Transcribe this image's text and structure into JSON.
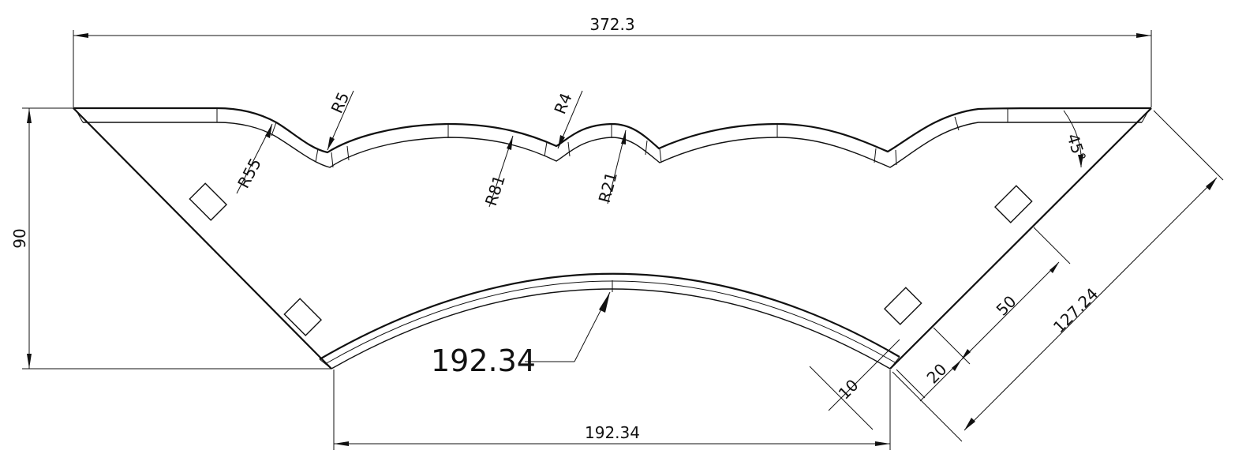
{
  "drawing": {
    "dimensions": {
      "overall_width": "372.3",
      "height": "90",
      "bottom_width": "192.34",
      "arc_callout": "192.34",
      "side_length": "127.24",
      "tab_spacing": "50",
      "tab_offset": "20",
      "tab_width": "10",
      "angle": "45°"
    },
    "radii": {
      "r55": "R55",
      "r5": "R5",
      "r81": "R81",
      "r4": "R4",
      "r21": "R21"
    }
  }
}
